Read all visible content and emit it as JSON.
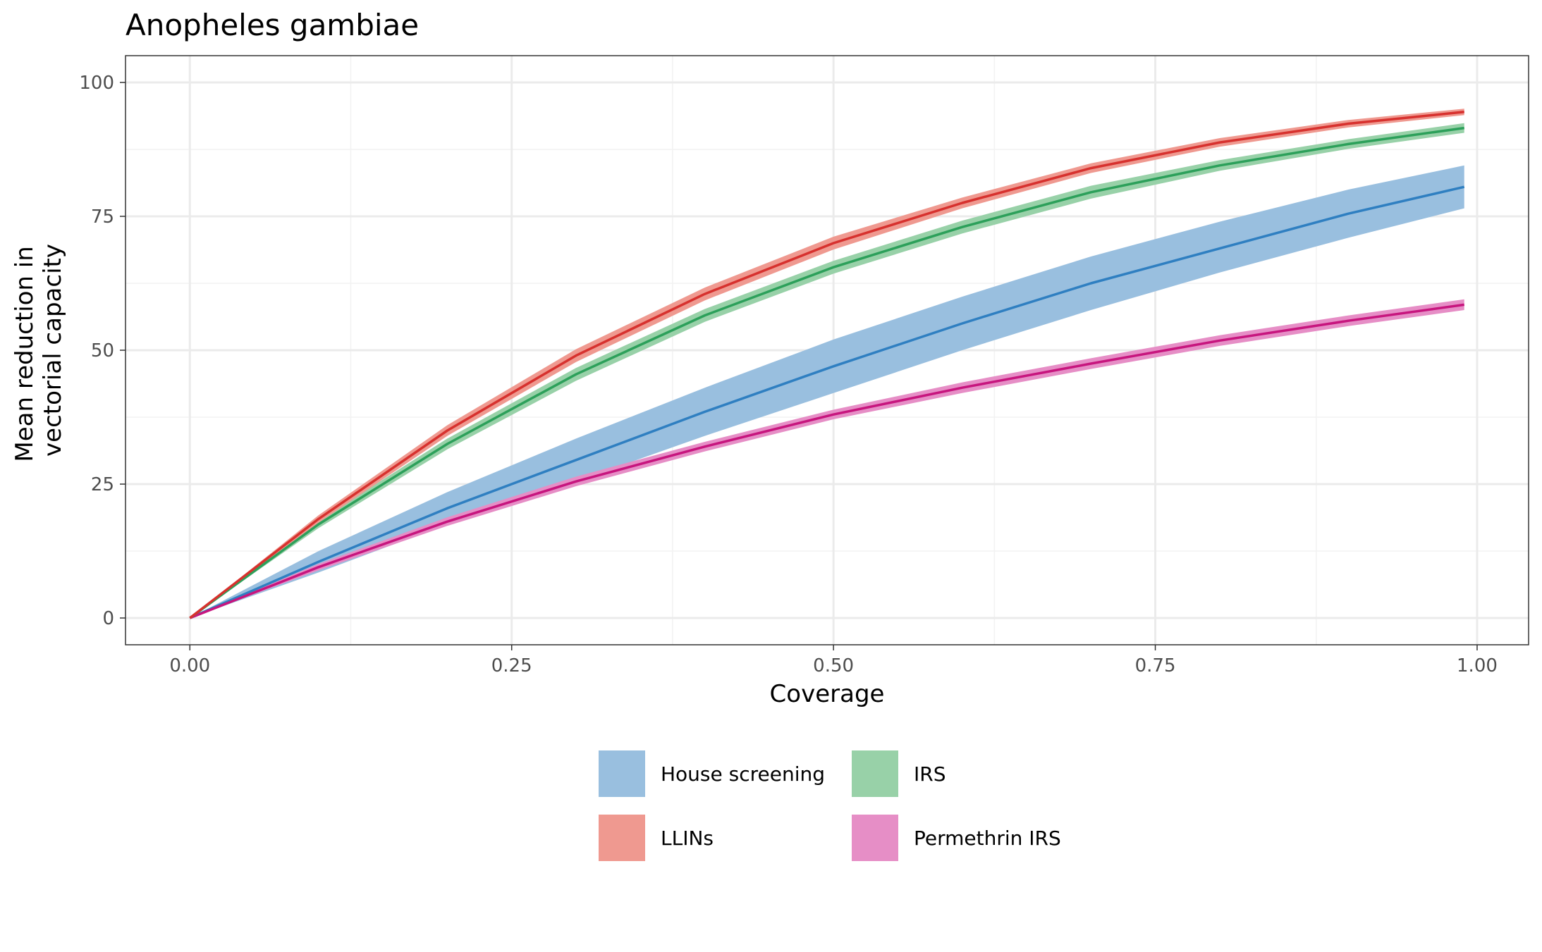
{
  "chart_data": {
    "type": "line",
    "title": "Anopheles gambiae",
    "xlabel": "Coverage",
    "ylabel_lines": [
      "Mean reduction in",
      "vectorial capacity"
    ],
    "xlim": [
      -0.05,
      1.04
    ],
    "ylim": [
      -5,
      105
    ],
    "x_ticks": [
      0,
      0.25,
      0.5,
      0.75,
      1.0
    ],
    "x_tick_labels": [
      "0.00",
      "0.25",
      "0.50",
      "0.75",
      "1.00"
    ],
    "y_ticks": [
      0,
      25,
      50,
      75,
      100
    ],
    "y_tick_labels": [
      "0",
      "25",
      "50",
      "75",
      "100"
    ],
    "grid": true,
    "legend_position": "bottom",
    "x": [
      0,
      0.1,
      0.2,
      0.3,
      0.4,
      0.5,
      0.6,
      0.7,
      0.8,
      0.9,
      0.99
    ],
    "series": [
      {
        "name": "House screening",
        "line_color": "#2f7fc1",
        "band_color": "#99bfdf",
        "mean": [
          0,
          10.5,
          20.5,
          29.5,
          38.5,
          47,
          55,
          62.5,
          69,
          75.5,
          80.5
        ],
        "lower": [
          0,
          8.5,
          17.5,
          25.5,
          34,
          42,
          50,
          57.5,
          64.5,
          71,
          76.5
        ],
        "upper": [
          0,
          12.5,
          23.5,
          33.5,
          43,
          52,
          60,
          67.5,
          74,
          80,
          84.5
        ]
      },
      {
        "name": "IRS",
        "line_color": "#2ca05a",
        "band_color": "#98d1a8",
        "mean": [
          0,
          17.5,
          32.5,
          45.5,
          56.5,
          65.5,
          73,
          79.5,
          84.5,
          88.5,
          91.5
        ],
        "lower": [
          0,
          16.8,
          31.5,
          44.3,
          55.3,
          64.3,
          71.8,
          78.3,
          83.5,
          87.6,
          90.6
        ],
        "upper": [
          0,
          18.2,
          33.5,
          46.7,
          57.7,
          66.7,
          74.2,
          80.7,
          85.5,
          89.4,
          92.4
        ]
      },
      {
        "name": "LLINs",
        "line_color": "#d7312e",
        "band_color": "#ef9990",
        "mean": [
          0,
          18.5,
          35,
          49,
          60.5,
          70,
          77.5,
          84,
          88.8,
          92.3,
          94.5
        ],
        "lower": [
          0,
          17.8,
          34,
          47.8,
          59.3,
          68.8,
          76.5,
          83.1,
          88,
          91.6,
          93.9
        ],
        "upper": [
          0,
          19.2,
          36,
          50.2,
          61.7,
          71.2,
          78.5,
          84.9,
          89.6,
          93,
          95.1
        ]
      },
      {
        "name": "Permethrin IRS",
        "line_color": "#c7157e",
        "band_color": "#e68ec6",
        "mean": [
          0,
          9.5,
          18,
          25.5,
          32,
          38,
          43,
          47.5,
          51.8,
          55.5,
          58.5
        ],
        "lower": [
          0,
          8.9,
          17.2,
          24.6,
          31.1,
          37.1,
          42,
          46.5,
          50.8,
          54.5,
          57.5
        ],
        "upper": [
          0,
          10.1,
          18.8,
          26.4,
          32.9,
          38.9,
          44,
          48.5,
          52.8,
          56.5,
          59.5
        ]
      }
    ]
  }
}
